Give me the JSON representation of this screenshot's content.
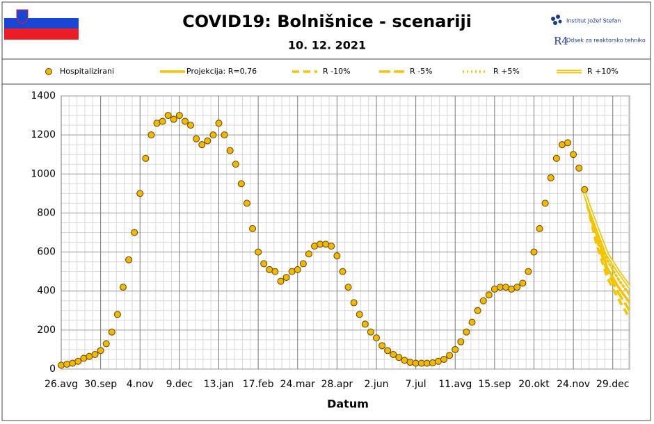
{
  "header": {
    "institute": "Institut Jožef Stefan",
    "department": "Odsek za reaktorsko tehniko"
  },
  "chart_data": {
    "type": "scatter",
    "title": "COVID19: Bolnišnice - scenariji",
    "subtitle": "10. 12. 2021",
    "x_label": "Datum",
    "xlim": [
      0,
      505
    ],
    "ylim": [
      0,
      1400
    ],
    "xticks": [
      {
        "value": 0,
        "label": "26.avg"
      },
      {
        "value": 35,
        "label": "30.sep"
      },
      {
        "value": 70,
        "label": "4.nov"
      },
      {
        "value": 105,
        "label": "9.dec"
      },
      {
        "value": 140,
        "label": "13.jan"
      },
      {
        "value": 175,
        "label": "17.feb"
      },
      {
        "value": 210,
        "label": "24.mar"
      },
      {
        "value": 245,
        "label": "28.apr"
      },
      {
        "value": 280,
        "label": "2.jun"
      },
      {
        "value": 315,
        "label": "7.jul"
      },
      {
        "value": 350,
        "label": "11.avg"
      },
      {
        "value": 385,
        "label": "15.sep"
      },
      {
        "value": 420,
        "label": "20.okt"
      },
      {
        "value": 455,
        "label": "24.nov"
      },
      {
        "value": 490,
        "label": "29.dec"
      }
    ],
    "yticks": [
      0,
      200,
      400,
      600,
      800,
      1000,
      1200,
      1400
    ],
    "grid": true,
    "legend": "top",
    "series": [
      {
        "name": "Hospitalizirani",
        "color": "#f5b800",
        "style": "dots",
        "x": [
          0,
          5,
          10,
          15,
          20,
          25,
          30,
          35,
          40,
          45,
          50,
          55,
          60,
          65,
          70,
          75,
          80,
          85,
          90,
          95,
          100,
          105,
          110,
          115,
          120,
          125,
          130,
          135,
          140,
          145,
          150,
          155,
          160,
          165,
          170,
          175,
          180,
          185,
          190,
          195,
          200,
          205,
          210,
          215,
          220,
          225,
          230,
          235,
          240,
          245,
          250,
          255,
          260,
          265,
          270,
          275,
          280,
          285,
          290,
          295,
          300,
          305,
          310,
          315,
          320,
          325,
          330,
          335,
          340,
          345,
          350,
          355,
          360,
          365,
          370,
          375,
          380,
          385,
          390,
          395,
          400,
          405,
          410,
          415,
          420,
          425,
          430,
          435,
          440,
          445,
          450,
          455,
          460,
          465
        ],
        "values": [
          20,
          25,
          30,
          40,
          55,
          65,
          75,
          95,
          130,
          190,
          280,
          420,
          560,
          700,
          900,
          1080,
          1200,
          1260,
          1270,
          1300,
          1280,
          1300,
          1270,
          1250,
          1180,
          1150,
          1170,
          1200,
          1260,
          1200,
          1120,
          1050,
          950,
          850,
          720,
          600,
          540,
          510,
          500,
          450,
          470,
          500,
          510,
          540,
          590,
          630,
          640,
          640,
          630,
          580,
          500,
          420,
          340,
          280,
          230,
          190,
          160,
          120,
          95,
          75,
          60,
          45,
          35,
          30,
          30,
          30,
          32,
          40,
          50,
          70,
          100,
          140,
          190,
          240,
          300,
          350,
          380,
          410,
          420,
          420,
          410,
          420,
          440,
          500,
          600,
          720,
          850,
          980,
          1080,
          1150,
          1160,
          1100,
          1030,
          920
        ]
      },
      {
        "name": "Projekcija: R=0,76",
        "color": "#f5c400",
        "style": "solid",
        "x": [
          465,
          475,
          485,
          495,
          505
        ],
        "values": [
          900,
          700,
          520,
          420,
          340
        ]
      },
      {
        "name": "R -10%",
        "color": "#f5c400",
        "style": "dash",
        "x": [
          465,
          475,
          485,
          495,
          505
        ],
        "values": [
          900,
          650,
          470,
          360,
          260
        ]
      },
      {
        "name": "R -5%",
        "color": "#f5c400",
        "style": "longdash",
        "x": [
          465,
          475,
          485,
          495,
          505
        ],
        "values": [
          900,
          680,
          500,
          390,
          300
        ]
      },
      {
        "name": "R +5%",
        "color": "#f5c400",
        "style": "dot",
        "x": [
          465,
          475,
          485,
          495,
          505
        ],
        "values": [
          900,
          720,
          560,
          460,
          380
        ]
      },
      {
        "name": "R +10%",
        "color": "#f5c400",
        "style": "double",
        "x": [
          465,
          475,
          485,
          495,
          505
        ],
        "values": [
          900,
          740,
          590,
          500,
          420
        ]
      }
    ]
  }
}
